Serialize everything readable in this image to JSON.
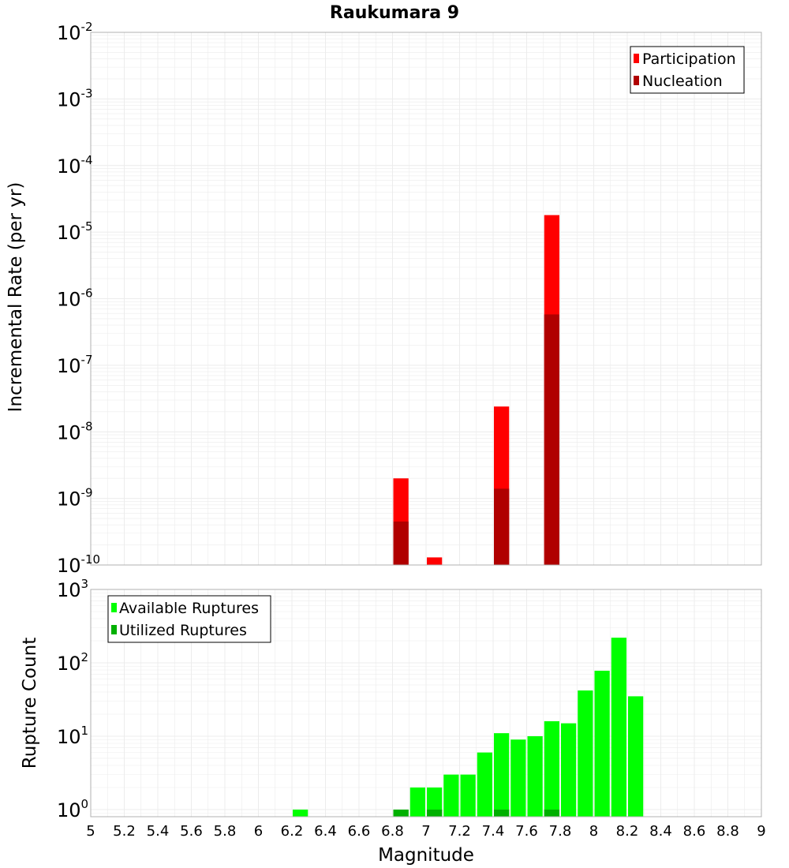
{
  "title": "Raukumara 9",
  "xlabel": "Magnitude",
  "x_ticks": [
    "5",
    "5.2",
    "5.4",
    "5.6",
    "5.8",
    "6",
    "6.2",
    "6.4",
    "6.6",
    "6.8",
    "7",
    "7.2",
    "7.4",
    "7.6",
    "7.8",
    "8",
    "8.2",
    "8.4",
    "8.6",
    "8.8",
    "9"
  ],
  "colors": {
    "participation": "#ff0000",
    "nucleation": "#b00000",
    "available": "#00ff00",
    "utilized": "#00b000",
    "grid": "#ececec",
    "frame": "#b0b0b0"
  },
  "chart_data": [
    {
      "type": "bar",
      "ylabel": "Incremental Rate (per yr)",
      "yscale": "log",
      "ylim": [
        1e-10,
        0.01
      ],
      "y_ticks": [
        {
          "base": "10",
          "exp": "-2"
        },
        {
          "base": "10",
          "exp": "-3"
        },
        {
          "base": "10",
          "exp": "-4"
        },
        {
          "base": "10",
          "exp": "-5"
        },
        {
          "base": "10",
          "exp": "-6"
        },
        {
          "base": "10",
          "exp": "-7"
        },
        {
          "base": "10",
          "exp": "-8"
        },
        {
          "base": "10",
          "exp": "-9"
        },
        {
          "base": "10",
          "exp": "-10"
        }
      ],
      "xlim": [
        5,
        9
      ],
      "bin_width": 0.1,
      "legend": {
        "position": "top-right",
        "entries": [
          "Participation",
          "Nucleation"
        ]
      },
      "series": [
        {
          "name": "Participation",
          "x": [
            6.85,
            7.05,
            7.45,
            7.75
          ],
          "values": [
            2e-09,
            1.3e-10,
            2.4e-08,
            1.8e-05
          ]
        },
        {
          "name": "Nucleation",
          "x": [
            6.85,
            7.45,
            7.75
          ],
          "values": [
            4.5e-10,
            1.4e-09,
            5.8e-07
          ]
        }
      ]
    },
    {
      "type": "bar",
      "ylabel": "Rupture Count",
      "yscale": "log",
      "ylim": [
        0.8,
        1000
      ],
      "y_ticks": [
        {
          "base": "10",
          "exp": "3"
        },
        {
          "base": "10",
          "exp": "2"
        },
        {
          "base": "10",
          "exp": "1"
        },
        {
          "base": "10",
          "exp": "0"
        }
      ],
      "xlim": [
        5,
        9
      ],
      "bin_width": 0.1,
      "legend": {
        "position": "top-left",
        "entries": [
          "Available Ruptures",
          "Utilized Ruptures"
        ]
      },
      "series": [
        {
          "name": "Available Ruptures",
          "x": [
            6.25,
            6.85,
            6.95,
            7.05,
            7.15,
            7.25,
            7.35,
            7.45,
            7.55,
            7.65,
            7.75,
            7.85,
            7.95,
            8.05,
            8.15,
            8.25
          ],
          "values": [
            1,
            1,
            2,
            2,
            3,
            3,
            6,
            11,
            9,
            10,
            16,
            15,
            42,
            78,
            220,
            35
          ]
        },
        {
          "name": "Utilized Ruptures",
          "x": [
            6.85,
            7.05,
            7.45,
            7.75
          ],
          "values": [
            1,
            1,
            1,
            1
          ]
        }
      ]
    }
  ]
}
